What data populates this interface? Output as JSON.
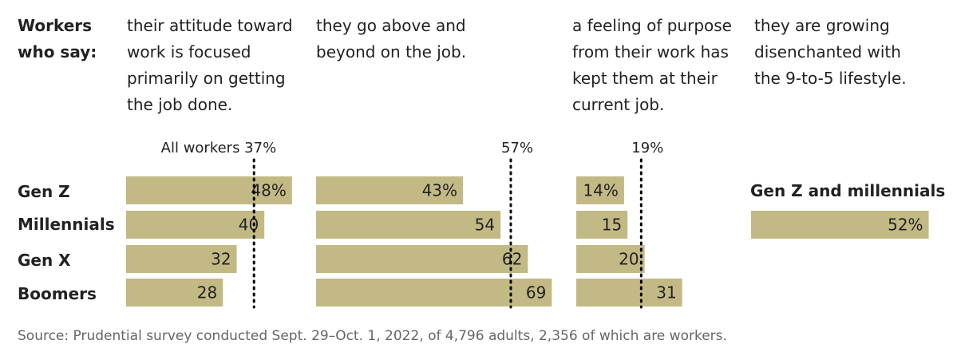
{
  "header_label": "Workers who say:",
  "column_headers": [
    "their attitude toward work is focused primarily on getting the job done.",
    "they go above and beyond on the job.",
    "a feeling of purpose from their work has kept them at their current job.",
    "they are growing disenchanted with the 9-to-5 lifestyle."
  ],
  "rows": [
    "Gen Z",
    "Millennials",
    "Gen X",
    "Boomers"
  ],
  "source": "Source: Prudential survey conducted Sept. 29–Oct. 1, 2022, of 4,796 adults, 2,356 of which are workers.",
  "colors": {
    "bar": "#c3b984",
    "text": "#222222",
    "source": "#666666"
  },
  "chart_data": [
    {
      "type": "bar",
      "orientation": "horizontal",
      "categories": [
        "Gen Z",
        "Millennials",
        "Gen X",
        "Boomers"
      ],
      "values": [
        48,
        40,
        32,
        28
      ],
      "value_labels": [
        "48%",
        "40",
        "32",
        "28"
      ],
      "reference_value": 37,
      "reference_label": "All workers 37%"
    },
    {
      "type": "bar",
      "orientation": "horizontal",
      "categories": [
        "Gen Z",
        "Millennials",
        "Gen X",
        "Boomers"
      ],
      "values": [
        43,
        54,
        62,
        69
      ],
      "value_labels": [
        "43%",
        "54",
        "62",
        "69"
      ],
      "reference_value": 57,
      "reference_label": "57%"
    },
    {
      "type": "bar",
      "orientation": "horizontal",
      "categories": [
        "Gen Z",
        "Millennials",
        "Gen X",
        "Boomers"
      ],
      "values": [
        14,
        15,
        20,
        31
      ],
      "value_labels": [
        "14%",
        "15",
        "20",
        "31"
      ],
      "reference_value": 19,
      "reference_label": "19%"
    },
    {
      "type": "bar",
      "orientation": "horizontal",
      "category_label": "Gen Z and millennials",
      "categories": [
        "Gen Z and millennials"
      ],
      "values": [
        52
      ],
      "value_labels": [
        "52%"
      ]
    }
  ]
}
